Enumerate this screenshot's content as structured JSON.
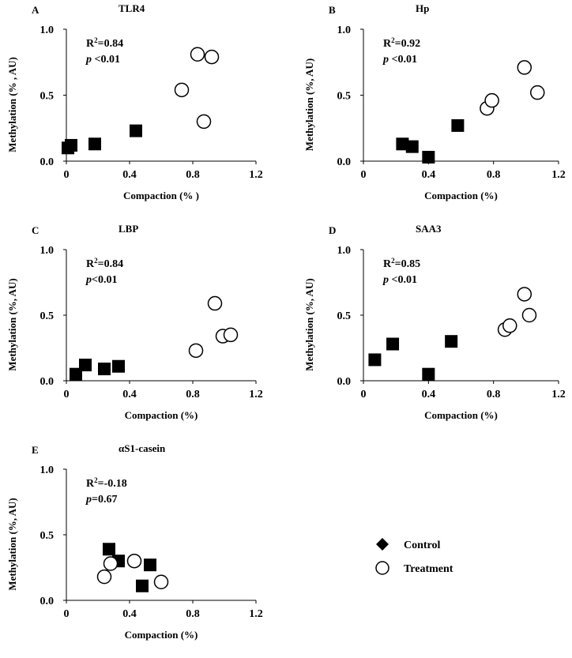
{
  "legend": {
    "control_label": "Control",
    "treatment_label": "Treatment",
    "control_color": "#000000",
    "treatment_color": "#ffffff"
  },
  "chart_data": [
    {
      "type": "scatter",
      "panel": "A",
      "title": "TLR4",
      "xlabel": "Compaction (% )",
      "ylabel": "Methylation (% , AU)",
      "xlim": [
        0,
        1.2
      ],
      "ylim": [
        0,
        1.0
      ],
      "xticks": [
        "0",
        "0.4",
        "0.8",
        "1.2"
      ],
      "yticks": [
        "0.0",
        "0.5",
        "1.0"
      ],
      "stat_r2_prefix": "R",
      "stat_r2_sup": "2",
      "stat_r2_value": "=0.84",
      "stat_p_letter": "p",
      "stat_p_value": " <0.01",
      "series": [
        {
          "name": "Control",
          "marker": "square",
          "points": [
            [
              0.01,
              0.1
            ],
            [
              0.03,
              0.12
            ],
            [
              0.18,
              0.13
            ],
            [
              0.44,
              0.23
            ]
          ]
        },
        {
          "name": "Treatment",
          "marker": "circle",
          "points": [
            [
              0.73,
              0.54
            ],
            [
              0.83,
              0.81
            ],
            [
              0.92,
              0.79
            ],
            [
              0.87,
              0.3
            ]
          ]
        }
      ]
    },
    {
      "type": "scatter",
      "panel": "B",
      "title": "Hp",
      "xlabel": "Compaction (%)",
      "ylabel": "Methylation (%,  AU)",
      "xlim": [
        0,
        1.2
      ],
      "ylim": [
        0,
        1.0
      ],
      "xticks": [
        "0",
        "0.4",
        "0.8",
        "1.2"
      ],
      "yticks": [
        "0.0",
        "0.5",
        "1.0"
      ],
      "stat_r2_prefix": "R",
      "stat_r2_sup": "2",
      "stat_r2_value": "=0.92",
      "stat_p_letter": "p",
      "stat_p_value": " <0.01",
      "series": [
        {
          "name": "Control",
          "marker": "square",
          "points": [
            [
              0.24,
              0.13
            ],
            [
              0.3,
              0.11
            ],
            [
              0.4,
              0.03
            ],
            [
              0.58,
              0.27
            ]
          ]
        },
        {
          "name": "Treatment",
          "marker": "circle",
          "points": [
            [
              0.76,
              0.4
            ],
            [
              0.79,
              0.46
            ],
            [
              0.99,
              0.71
            ],
            [
              1.07,
              0.52
            ]
          ]
        }
      ]
    },
    {
      "type": "scatter",
      "panel": "C",
      "title": "LBP",
      "xlabel": "Compaction (%)",
      "ylabel": "Methylation (%, AU)",
      "xlim": [
        0,
        1.2
      ],
      "ylim": [
        0,
        1.0
      ],
      "xticks": [
        "0",
        "0.4",
        "0.8",
        "1.2"
      ],
      "yticks": [
        "0.0",
        "0.5",
        "1.0"
      ],
      "stat_r2_prefix": "R",
      "stat_r2_sup": "2",
      "stat_r2_value": "=0.84",
      "stat_p_letter": "p",
      "stat_p_value": "<0.01",
      "series": [
        {
          "name": "Control",
          "marker": "square",
          "points": [
            [
              0.06,
              0.05
            ],
            [
              0.12,
              0.12
            ],
            [
              0.24,
              0.09
            ],
            [
              0.33,
              0.11
            ]
          ]
        },
        {
          "name": "Treatment",
          "marker": "circle",
          "points": [
            [
              0.82,
              0.23
            ],
            [
              0.94,
              0.59
            ],
            [
              0.99,
              0.34
            ],
            [
              1.04,
              0.35
            ]
          ]
        }
      ]
    },
    {
      "type": "scatter",
      "panel": "D",
      "title": "SAA3",
      "xlabel": "Compaction (%)",
      "ylabel": "Methylation (%, AU)",
      "xlim": [
        0,
        1.2
      ],
      "ylim": [
        0,
        1.0
      ],
      "xticks": [
        "0",
        "0.4",
        "0.8",
        "1.2"
      ],
      "yticks": [
        "0.0",
        "0.5",
        "1.0"
      ],
      "stat_r2_prefix": "R",
      "stat_r2_sup": "2",
      "stat_r2_value": "=0.85",
      "stat_p_letter": "p",
      "stat_p_value": " <0.01",
      "series": [
        {
          "name": "Control",
          "marker": "square",
          "points": [
            [
              0.07,
              0.16
            ],
            [
              0.18,
              0.28
            ],
            [
              0.4,
              0.05
            ],
            [
              0.54,
              0.3
            ]
          ]
        },
        {
          "name": "Treatment",
          "marker": "circle",
          "points": [
            [
              0.87,
              0.39
            ],
            [
              0.9,
              0.42
            ],
            [
              0.99,
              0.66
            ],
            [
              1.02,
              0.5
            ]
          ]
        }
      ]
    },
    {
      "type": "scatter",
      "panel": "E",
      "title": "αS1-casein",
      "xlabel": "Compaction (%)",
      "ylabel": "Methylation (%, AU)",
      "xlim": [
        0,
        1.2
      ],
      "ylim": [
        0,
        1.0
      ],
      "xticks": [
        "0",
        "0.4",
        "0.8",
        "1.2"
      ],
      "yticks": [
        "0.0",
        "0.5",
        "1.0"
      ],
      "stat_r2_prefix": "R",
      "stat_r2_sup": "2",
      "stat_r2_value": "=-0.18",
      "stat_p_letter": "p",
      "stat_p_value": "=0.67",
      "series": [
        {
          "name": "Control",
          "marker": "square",
          "points": [
            [
              0.27,
              0.39
            ],
            [
              0.33,
              0.3
            ],
            [
              0.48,
              0.11
            ],
            [
              0.53,
              0.27
            ]
          ]
        },
        {
          "name": "Treatment",
          "marker": "circle",
          "points": [
            [
              0.24,
              0.18
            ],
            [
              0.28,
              0.28
            ],
            [
              0.43,
              0.3
            ],
            [
              0.6,
              0.14
            ]
          ]
        }
      ]
    }
  ]
}
